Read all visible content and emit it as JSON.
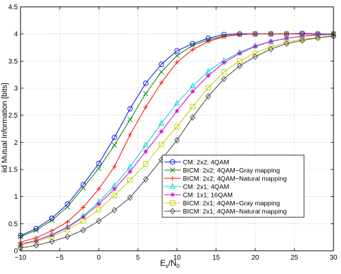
{
  "chart_data": {
    "type": "line",
    "title": "",
    "xlabel_main": "E",
    "xlabel_sub1": "s",
    "xlabel_mid": "/N",
    "xlabel_sub2": "0",
    "ylabel": "iid Mutual Information [bits]",
    "xlim": [
      -10,
      30
    ],
    "ylim": [
      0,
      4.5
    ],
    "xticks": [
      -10,
      -5,
      0,
      5,
      10,
      15,
      20,
      25,
      30
    ],
    "yticks": [
      0,
      0.5,
      1,
      1.5,
      2,
      2.5,
      3,
      3.5,
      4,
      4.5
    ],
    "xtick_labels": [
      "−10",
      "−5",
      "0",
      "5",
      "10",
      "15",
      "20",
      "25",
      "30"
    ],
    "ytick_labels": [
      "0",
      "0.5",
      "1",
      "1.5",
      "2",
      "2.5",
      "3",
      "3.5",
      "4",
      "4.5"
    ],
    "grid": true,
    "legend_position": "center-right",
    "x": [
      -10,
      -8,
      -6,
      -4,
      -2,
      0,
      2,
      4,
      6,
      8,
      10,
      12,
      14,
      16,
      18,
      20,
      22,
      24,
      26,
      28,
      30
    ],
    "series": [
      {
        "name": "CM: 2x2; 4QAM",
        "color": "#0000ff",
        "marker": "circle",
        "values": [
          0.28,
          0.41,
          0.6,
          0.86,
          1.22,
          1.61,
          2.09,
          2.62,
          3.09,
          3.44,
          3.69,
          3.82,
          3.92,
          3.99,
          4.0,
          4.0,
          4.0,
          4.0,
          4.01,
          4.0,
          4.0
        ]
      },
      {
        "name": "BICM: 2x2; 4QAM−Gray mapping",
        "color": "#008000",
        "marker": "x",
        "values": [
          0.26,
          0.38,
          0.56,
          0.81,
          1.16,
          1.52,
          1.95,
          2.42,
          2.9,
          3.3,
          3.6,
          3.79,
          3.89,
          3.96,
          3.99,
          4.0,
          4.0,
          4.0,
          4.0,
          4.0,
          4.0
        ]
      },
      {
        "name": "BICM: 2x2; 4QAM−Natural mapping",
        "color": "#ff0000",
        "marker": "plus",
        "values": [
          0.16,
          0.24,
          0.37,
          0.53,
          0.8,
          1.14,
          1.55,
          2.14,
          2.65,
          3.1,
          3.48,
          3.71,
          3.86,
          3.95,
          3.99,
          4.0,
          4.0,
          4.0,
          4.0,
          4.0,
          4.0
        ]
      },
      {
        "name": "CM: 2x1; 4QAM",
        "color": "#00d0d0",
        "marker": "triangle",
        "values": [
          0.12,
          0.19,
          0.3,
          0.44,
          0.64,
          0.9,
          1.2,
          1.55,
          1.95,
          2.35,
          2.72,
          3.04,
          3.31,
          3.51,
          3.66,
          3.78,
          3.86,
          3.92,
          3.96,
          3.99,
          4.0
        ]
      },
      {
        "name": "CM: 1x1; 16QAM",
        "color": "#cc00cc",
        "marker": "star",
        "values": [
          0.12,
          0.19,
          0.29,
          0.43,
          0.62,
          0.86,
          1.14,
          1.46,
          1.83,
          2.2,
          2.58,
          2.94,
          3.23,
          3.47,
          3.64,
          3.77,
          3.86,
          3.92,
          3.96,
          3.98,
          3.99
        ]
      },
      {
        "name": "BICM: 2x1; 4QAM−Gray mapping",
        "color": "#c8c800",
        "marker": "square",
        "values": [
          0.11,
          0.17,
          0.26,
          0.39,
          0.55,
          0.76,
          1.02,
          1.3,
          1.6,
          1.96,
          2.29,
          2.66,
          3.01,
          3.3,
          3.5,
          3.65,
          3.76,
          3.85,
          3.9,
          3.93,
          3.97
        ]
      },
      {
        "name": "BICM: 2x1; 4QAM−Natural mapping",
        "color": "#404040",
        "marker": "diamond",
        "values": [
          0.05,
          0.1,
          0.17,
          0.26,
          0.38,
          0.55,
          0.75,
          0.98,
          1.32,
          1.68,
          2.04,
          2.46,
          2.85,
          3.17,
          3.41,
          3.58,
          3.72,
          3.82,
          3.88,
          3.93,
          3.96
        ]
      }
    ]
  }
}
